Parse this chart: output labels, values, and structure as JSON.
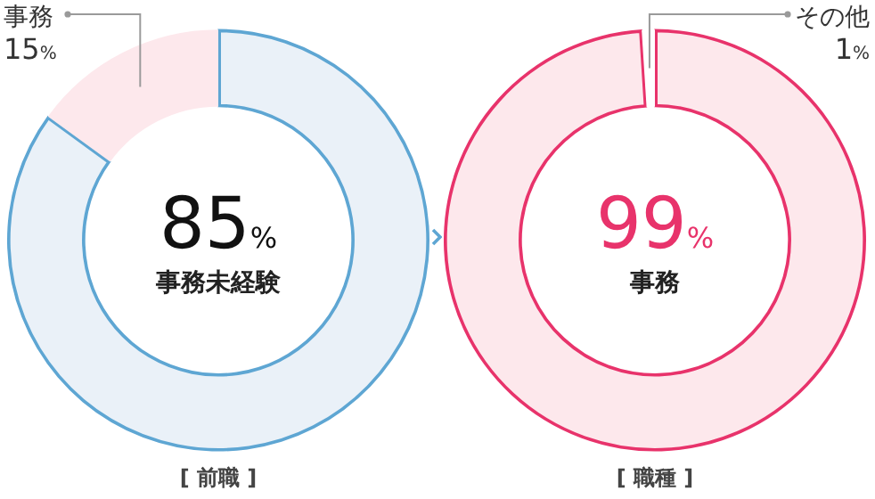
{
  "chart_data": [
    {
      "type": "donut",
      "title": "[ 前職 ]",
      "categories": [
        "事務未経験",
        "事務"
      ],
      "values": [
        85,
        15
      ],
      "value_labels": [
        "85%",
        "15%"
      ],
      "colors": [
        "#eaf1f8",
        "#fde8ec"
      ]
    },
    {
      "type": "donut",
      "title": "[ 職種 ]",
      "categories": [
        "事務",
        "その他"
      ],
      "values": [
        99,
        1
      ],
      "value_labels": [
        "99%",
        "1%"
      ],
      "colors": [
        "#fde8ec",
        "#ffffff"
      ]
    }
  ]
}
